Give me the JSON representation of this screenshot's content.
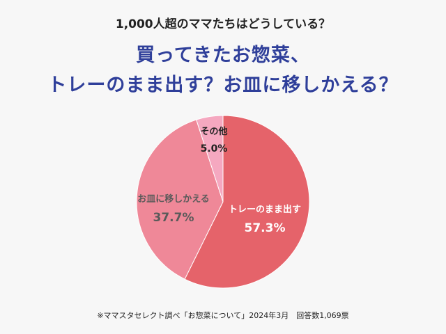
{
  "header": {
    "subtitle": "1,000人超のママたちはどうしている？",
    "title_line1": "買ってきたお惣菜、",
    "title_line2": "トレーのまま出す？お皿に移しかえる？"
  },
  "chart_data": {
    "type": "pie",
    "slices": [
      {
        "label": "トレーのまま出す",
        "value": 57.3,
        "display": "57.3%",
        "color": "#e5636a",
        "text_color": "#ffffff"
      },
      {
        "label": "お皿に移しかえる",
        "value": 37.7,
        "display": "37.7%",
        "color": "#ef8898",
        "text_color": "#5a5a5a"
      },
      {
        "label": "その他",
        "value": 5.0,
        "display": "5.0%",
        "color": "#f5a8c0",
        "text_color": "#222222"
      }
    ]
  },
  "footnote": "※ママスタセレクト調べ「お惣菜について」2024年3月　回答数1,069票"
}
